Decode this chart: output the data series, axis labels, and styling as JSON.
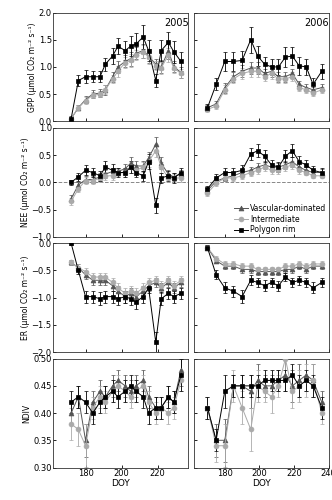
{
  "years": [
    "2005",
    "2006"
  ],
  "legend_labels": [
    "Vascular-dominated",
    "Intermediate",
    "Polygon rim"
  ],
  "vasc_color": "#555555",
  "inter_color": "#aaaaaa",
  "rim_color": "#000000",
  "vasc_marker": "^",
  "inter_marker": "o",
  "rim_marker": "s",
  "gpp_2005_doy": [
    172,
    176,
    180,
    184,
    188,
    191,
    195,
    198,
    202,
    205,
    208,
    212,
    215,
    219,
    222,
    226,
    229,
    233
  ],
  "gpp_2005_vasc": [
    0.05,
    0.25,
    0.4,
    0.5,
    0.52,
    0.58,
    0.82,
    1.0,
    1.1,
    1.15,
    1.25,
    1.3,
    1.2,
    1.05,
    1.0,
    1.3,
    1.0,
    0.9
  ],
  "gpp_2005_vasc_err": [
    0.03,
    0.05,
    0.07,
    0.07,
    0.07,
    0.09,
    0.09,
    0.11,
    0.11,
    0.13,
    0.11,
    0.13,
    0.13,
    0.09,
    0.12,
    0.15,
    0.1,
    0.1
  ],
  "gpp_2005_inter": [
    0.05,
    0.25,
    0.38,
    0.48,
    0.5,
    0.58,
    0.78,
    0.92,
    1.08,
    1.12,
    1.22,
    1.28,
    1.18,
    1.02,
    0.98,
    1.22,
    0.98,
    0.88
  ],
  "gpp_2005_inter_err": [
    0.03,
    0.05,
    0.06,
    0.06,
    0.06,
    0.08,
    0.08,
    0.1,
    0.1,
    0.12,
    0.1,
    0.12,
    0.12,
    0.08,
    0.11,
    0.13,
    0.09,
    0.09
  ],
  "gpp_2005_rim": [
    0.05,
    0.75,
    0.82,
    0.82,
    0.82,
    1.05,
    1.2,
    1.38,
    1.3,
    1.38,
    1.42,
    1.55,
    1.3,
    0.75,
    1.3,
    1.45,
    1.28,
    1.1
  ],
  "gpp_2005_rim_err": [
    0.04,
    0.1,
    0.12,
    0.1,
    0.1,
    0.12,
    0.14,
    0.15,
    0.18,
    0.18,
    0.2,
    0.22,
    0.2,
    0.12,
    0.2,
    0.2,
    0.2,
    0.18
  ],
  "gpp_2006_doy": [
    170,
    175,
    180,
    185,
    190,
    195,
    199,
    203,
    207,
    211,
    215,
    219,
    223,
    227,
    231,
    236
  ],
  "gpp_2006_vasc": [
    0.25,
    0.32,
    0.62,
    0.82,
    0.92,
    0.98,
    0.98,
    0.88,
    0.92,
    0.82,
    0.82,
    0.88,
    0.68,
    0.62,
    0.58,
    0.62
  ],
  "gpp_2006_vasc_err": [
    0.05,
    0.06,
    0.09,
    0.09,
    0.11,
    0.11,
    0.11,
    0.09,
    0.11,
    0.09,
    0.09,
    0.09,
    0.07,
    0.07,
    0.06,
    0.07
  ],
  "gpp_2006_inter": [
    0.22,
    0.28,
    0.58,
    0.78,
    0.88,
    0.92,
    0.92,
    0.82,
    0.88,
    0.78,
    0.78,
    0.82,
    0.62,
    0.58,
    0.52,
    0.58
  ],
  "gpp_2006_inter_err": [
    0.04,
    0.05,
    0.08,
    0.08,
    0.1,
    0.1,
    0.1,
    0.08,
    0.1,
    0.08,
    0.08,
    0.08,
    0.06,
    0.06,
    0.05,
    0.06
  ],
  "gpp_2006_rim": [
    0.25,
    0.68,
    1.1,
    1.1,
    1.12,
    1.5,
    1.2,
    1.05,
    1.0,
    1.0,
    1.18,
    1.2,
    1.02,
    1.0,
    0.68,
    0.92
  ],
  "gpp_2006_rim_err": [
    0.06,
    0.11,
    0.17,
    0.17,
    0.17,
    0.24,
    0.19,
    0.14,
    0.14,
    0.14,
    0.19,
    0.17,
    0.16,
    0.14,
    0.11,
    0.14
  ],
  "nee_2005_doy": [
    172,
    176,
    180,
    184,
    188,
    191,
    195,
    198,
    202,
    205,
    208,
    212,
    215,
    219,
    222,
    226,
    229,
    233
  ],
  "nee_2005_vasc": [
    -0.3,
    -0.05,
    0.05,
    0.05,
    0.1,
    0.15,
    0.2,
    0.2,
    0.25,
    0.35,
    0.3,
    0.3,
    0.45,
    0.7,
    0.35,
    0.15,
    0.1,
    0.15
  ],
  "nee_2005_vasc_err": [
    0.07,
    0.05,
    0.06,
    0.06,
    0.07,
    0.07,
    0.07,
    0.07,
    0.09,
    0.11,
    0.09,
    0.09,
    0.11,
    0.14,
    0.11,
    0.07,
    0.07,
    0.07
  ],
  "nee_2005_inter": [
    -0.35,
    -0.12,
    0.03,
    0.03,
    0.08,
    0.12,
    0.12,
    0.18,
    0.18,
    0.28,
    0.22,
    0.28,
    0.38,
    0.58,
    0.28,
    0.08,
    0.08,
    0.08
  ],
  "nee_2005_inter_err": [
    0.07,
    0.05,
    0.06,
    0.06,
    0.07,
    0.07,
    0.07,
    0.07,
    0.09,
    0.1,
    0.09,
    0.09,
    0.1,
    0.12,
    0.1,
    0.07,
    0.07,
    0.07
  ],
  "nee_2005_rim": [
    0.0,
    0.1,
    0.22,
    0.18,
    0.12,
    0.28,
    0.22,
    0.18,
    0.18,
    0.28,
    0.18,
    0.12,
    0.38,
    -0.42,
    0.08,
    0.12,
    0.08,
    0.18
  ],
  "nee_2005_rim_err": [
    0.05,
    0.07,
    0.09,
    0.09,
    0.09,
    0.11,
    0.11,
    0.09,
    0.09,
    0.11,
    0.09,
    0.09,
    0.14,
    0.14,
    0.09,
    0.09,
    0.09,
    0.09
  ],
  "nee_2006_doy": [
    170,
    175,
    180,
    185,
    190,
    195,
    199,
    203,
    207,
    211,
    215,
    219,
    223,
    227,
    231,
    236
  ],
  "nee_2006_vasc": [
    -0.15,
    0.02,
    0.08,
    0.12,
    0.18,
    0.22,
    0.28,
    0.32,
    0.28,
    0.28,
    0.32,
    0.38,
    0.28,
    0.22,
    0.18,
    0.18
  ],
  "nee_2006_vasc_err": [
    0.05,
    0.05,
    0.06,
    0.06,
    0.07,
    0.07,
    0.08,
    0.08,
    0.07,
    0.07,
    0.08,
    0.09,
    0.07,
    0.06,
    0.06,
    0.06
  ],
  "nee_2006_inter": [
    -0.2,
    -0.02,
    0.08,
    0.08,
    0.12,
    0.18,
    0.22,
    0.28,
    0.22,
    0.22,
    0.28,
    0.32,
    0.22,
    0.18,
    0.12,
    0.12
  ],
  "nee_2006_inter_err": [
    0.05,
    0.05,
    0.05,
    0.05,
    0.06,
    0.06,
    0.07,
    0.07,
    0.06,
    0.06,
    0.07,
    0.08,
    0.06,
    0.05,
    0.05,
    0.05
  ],
  "nee_2006_rim": [
    -0.12,
    0.08,
    0.18,
    0.18,
    0.22,
    0.52,
    0.58,
    0.48,
    0.32,
    0.28,
    0.48,
    0.58,
    0.38,
    0.32,
    0.22,
    0.18
  ],
  "nee_2006_rim_err": [
    0.05,
    0.07,
    0.09,
    0.09,
    0.09,
    0.11,
    0.12,
    0.11,
    0.09,
    0.09,
    0.11,
    0.12,
    0.1,
    0.09,
    0.08,
    0.08
  ],
  "er_2005_doy": [
    172,
    176,
    180,
    184,
    188,
    191,
    195,
    198,
    202,
    205,
    208,
    212,
    215,
    219,
    222,
    226,
    229,
    233
  ],
  "er_2005_vasc": [
    -0.35,
    -0.45,
    -0.58,
    -0.68,
    -0.68,
    -0.68,
    -0.78,
    -0.88,
    -0.98,
    -0.92,
    -0.98,
    -0.88,
    -0.78,
    -0.72,
    -0.82,
    -0.72,
    -0.82,
    -0.72
  ],
  "er_2005_vasc_err": [
    0.05,
    0.06,
    0.07,
    0.08,
    0.08,
    0.08,
    0.09,
    0.1,
    0.11,
    0.1,
    0.11,
    0.09,
    0.09,
    0.08,
    0.09,
    0.08,
    0.09,
    0.08
  ],
  "er_2005_inter": [
    -0.35,
    -0.45,
    -0.52,
    -0.62,
    -0.62,
    -0.62,
    -0.72,
    -0.82,
    -0.92,
    -0.88,
    -0.92,
    -0.82,
    -0.72,
    -0.68,
    -0.78,
    -0.68,
    -0.78,
    -0.68
  ],
  "er_2005_inter_err": [
    0.05,
    0.06,
    0.06,
    0.07,
    0.07,
    0.07,
    0.08,
    0.09,
    0.1,
    0.09,
    0.1,
    0.09,
    0.08,
    0.07,
    0.09,
    0.07,
    0.09,
    0.07
  ],
  "er_2005_rim": [
    0.0,
    -0.5,
    -0.98,
    -0.98,
    -1.02,
    -0.98,
    -0.98,
    -1.02,
    -0.98,
    -1.02,
    -1.08,
    -0.98,
    -0.82,
    -1.82,
    -1.02,
    -0.92,
    -0.98,
    -0.92
  ],
  "er_2005_rim_err": [
    0.04,
    0.07,
    0.11,
    0.11,
    0.12,
    0.11,
    0.11,
    0.12,
    0.11,
    0.12,
    0.13,
    0.11,
    0.09,
    0.19,
    0.12,
    0.1,
    0.11,
    0.1
  ],
  "er_2006_doy": [
    170,
    175,
    180,
    185,
    190,
    195,
    199,
    203,
    207,
    211,
    215,
    219,
    223,
    227,
    231,
    236
  ],
  "er_2006_vasc": [
    -0.08,
    -0.32,
    -0.42,
    -0.42,
    -0.48,
    -0.48,
    -0.52,
    -0.52,
    -0.52,
    -0.52,
    -0.48,
    -0.48,
    -0.42,
    -0.48,
    -0.42,
    -0.42
  ],
  "er_2006_vasc_err": [
    0.04,
    0.05,
    0.06,
    0.06,
    0.06,
    0.06,
    0.06,
    0.06,
    0.06,
    0.06,
    0.06,
    0.06,
    0.05,
    0.06,
    0.05,
    0.05
  ],
  "er_2006_inter": [
    -0.08,
    -0.28,
    -0.38,
    -0.38,
    -0.42,
    -0.42,
    -0.48,
    -0.48,
    -0.48,
    -0.48,
    -0.42,
    -0.42,
    -0.38,
    -0.42,
    -0.38,
    -0.38
  ],
  "er_2006_inter_err": [
    0.04,
    0.05,
    0.05,
    0.05,
    0.05,
    0.05,
    0.05,
    0.05,
    0.05,
    0.05,
    0.05,
    0.05,
    0.05,
    0.05,
    0.05,
    0.05
  ],
  "er_2006_rim": [
    -0.08,
    -0.58,
    -0.82,
    -0.88,
    -0.98,
    -0.68,
    -0.72,
    -0.78,
    -0.72,
    -0.78,
    -0.62,
    -0.72,
    -0.68,
    -0.72,
    -0.82,
    -0.72
  ],
  "er_2006_rim_err": [
    0.04,
    0.08,
    0.1,
    0.1,
    0.12,
    0.09,
    0.09,
    0.1,
    0.09,
    0.09,
    0.08,
    0.09,
    0.08,
    0.09,
    0.1,
    0.09
  ],
  "ndvi_2005_doy": [
    172,
    176,
    180,
    184,
    188,
    191,
    195,
    198,
    202,
    205,
    208,
    212,
    215,
    219,
    222,
    226,
    229,
    233
  ],
  "ndvi_2005_vasc": [
    0.4,
    0.43,
    0.35,
    0.42,
    0.44,
    0.43,
    0.45,
    0.46,
    0.45,
    0.44,
    0.45,
    0.46,
    0.43,
    0.41,
    0.41,
    0.43,
    0.42,
    0.48
  ],
  "ndvi_2005_vasc_err": [
    0.02,
    0.02,
    0.03,
    0.02,
    0.02,
    0.02,
    0.02,
    0.02,
    0.02,
    0.02,
    0.02,
    0.02,
    0.02,
    0.02,
    0.02,
    0.02,
    0.02,
    0.03
  ],
  "ndvi_2005_inter": [
    0.38,
    0.37,
    0.34,
    0.41,
    0.43,
    0.42,
    0.44,
    0.45,
    0.44,
    0.43,
    0.44,
    0.45,
    0.42,
    0.4,
    0.41,
    0.4,
    0.41,
    0.46
  ],
  "ndvi_2005_inter_err": [
    0.03,
    0.03,
    0.04,
    0.02,
    0.02,
    0.02,
    0.02,
    0.02,
    0.02,
    0.02,
    0.02,
    0.02,
    0.02,
    0.02,
    0.02,
    0.02,
    0.02,
    0.02
  ],
  "ndvi_2005_rim": [
    0.42,
    0.43,
    0.42,
    0.4,
    0.42,
    0.43,
    0.44,
    0.43,
    0.44,
    0.45,
    0.44,
    0.43,
    0.4,
    0.41,
    0.41,
    0.43,
    0.42,
    0.47
  ],
  "ndvi_2005_rim_err": [
    0.02,
    0.02,
    0.02,
    0.02,
    0.02,
    0.02,
    0.02,
    0.02,
    0.02,
    0.02,
    0.02,
    0.02,
    0.02,
    0.02,
    0.02,
    0.02,
    0.02,
    0.03
  ],
  "ndvi_2006_doy": [
    170,
    175,
    180,
    185,
    190,
    195,
    199,
    203,
    207,
    211,
    215,
    219,
    223,
    227,
    231,
    236
  ],
  "ndvi_2006_vasc": [
    0.41,
    0.35,
    0.35,
    0.45,
    0.45,
    0.44,
    0.46,
    0.45,
    0.45,
    0.46,
    0.47,
    0.45,
    0.46,
    0.47,
    0.46,
    0.42
  ],
  "ndvi_2006_vasc_err": [
    0.02,
    0.03,
    0.04,
    0.02,
    0.02,
    0.03,
    0.03,
    0.02,
    0.02,
    0.02,
    0.03,
    0.03,
    0.03,
    0.03,
    0.03,
    0.02
  ],
  "ndvi_2006_inter": [
    0.41,
    0.34,
    0.34,
    0.45,
    0.41,
    0.37,
    0.45,
    0.44,
    0.43,
    0.45,
    0.5,
    0.44,
    0.45,
    0.46,
    0.46,
    0.4
  ],
  "ndvi_2006_inter_err": [
    0.02,
    0.03,
    0.04,
    0.03,
    0.03,
    0.04,
    0.03,
    0.02,
    0.03,
    0.02,
    0.04,
    0.03,
    0.03,
    0.03,
    0.03,
    0.02
  ],
  "ndvi_2006_rim": [
    0.41,
    0.35,
    0.44,
    0.45,
    0.45,
    0.45,
    0.45,
    0.46,
    0.46,
    0.46,
    0.46,
    0.47,
    0.45,
    0.46,
    0.45,
    0.41
  ],
  "ndvi_2006_rim_err": [
    0.02,
    0.02,
    0.03,
    0.02,
    0.02,
    0.02,
    0.02,
    0.02,
    0.02,
    0.02,
    0.02,
    0.02,
    0.02,
    0.02,
    0.02,
    0.02
  ],
  "gpp_ylim": [
    0.0,
    2.0
  ],
  "nee_ylim": [
    -1.0,
    1.0
  ],
  "er_ylim": [
    -2.0,
    0.0
  ],
  "ndvi_ylim": [
    0.3,
    0.5
  ],
  "gpp_yticks": [
    0.0,
    0.5,
    1.0,
    1.5,
    2.0
  ],
  "nee_yticks": [
    -1.0,
    -0.5,
    0.0,
    0.5,
    1.0
  ],
  "er_yticks": [
    -2.0,
    -1.5,
    -1.0,
    -0.5,
    0.0
  ],
  "ndvi_yticks": [
    0.3,
    0.35,
    0.4,
    0.45,
    0.5
  ],
  "xlim_2005": [
    162,
    237
  ],
  "xlim_2006": [
    162,
    240
  ],
  "xticks_2005": [
    180,
    200,
    220
  ],
  "xticks_2006": [
    180,
    200,
    220,
    240
  ],
  "ylabel_gpp": "GPP (μmol CO₂ m⁻² s⁻¹)",
  "ylabel_nee": "NEE (μmol CO₂ m⁻² s⁻¹)",
  "ylabel_er": "ER (μmol CO₂ m⁻² s⁻¹)",
  "ylabel_ndvi": "NDIV",
  "xlabel": "DOY",
  "title_2005": "2005",
  "title_2006": "2006",
  "background_color": "#ffffff",
  "zero_line_color": "#888888",
  "zero_line_style": "--"
}
